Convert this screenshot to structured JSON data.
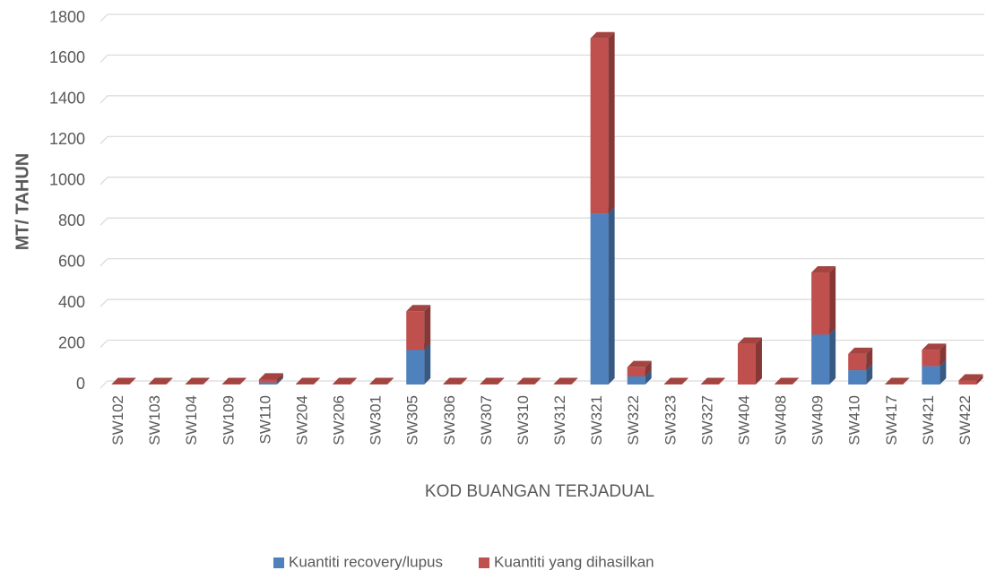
{
  "chart_data": {
    "type": "bar",
    "stacked": true,
    "three_d": true,
    "x_label": "KOD BUANGAN TERJADUAL",
    "y_label": "MT/ TAHUN",
    "categories": [
      "SW102",
      "SW103",
      "SW104",
      "SW109",
      "SW110",
      "SW204",
      "SW206",
      "SW301",
      "SW305",
      "SW306",
      "SW307",
      "SW310",
      "SW312",
      "SW321",
      "SW322",
      "SW323",
      "SW327",
      "SW404",
      "SW408",
      "SW409",
      "SW410",
      "SW417",
      "SW421",
      "SW422"
    ],
    "series": [
      {
        "name": "Kuantiti recovery/lupus",
        "color": "#4f81bd",
        "values": [
          0,
          0,
          0,
          0,
          10,
          0,
          0,
          0,
          170,
          0,
          0,
          0,
          0,
          840,
          40,
          0,
          0,
          0,
          0,
          245,
          70,
          0,
          90,
          0
        ]
      },
      {
        "name": "Kuantiti yang dihasilkan",
        "color": "#c0504d",
        "values": [
          2,
          2,
          2,
          2,
          15,
          2,
          2,
          2,
          190,
          2,
          2,
          2,
          2,
          860,
          45,
          2,
          2,
          200,
          2,
          305,
          80,
          2,
          80,
          20
        ]
      }
    ],
    "ylim": [
      0,
      1800
    ],
    "yticks": [
      0,
      200,
      400,
      600,
      800,
      1000,
      1200,
      1400,
      1600,
      1800
    ],
    "grid": true,
    "legend": "bottom"
  }
}
